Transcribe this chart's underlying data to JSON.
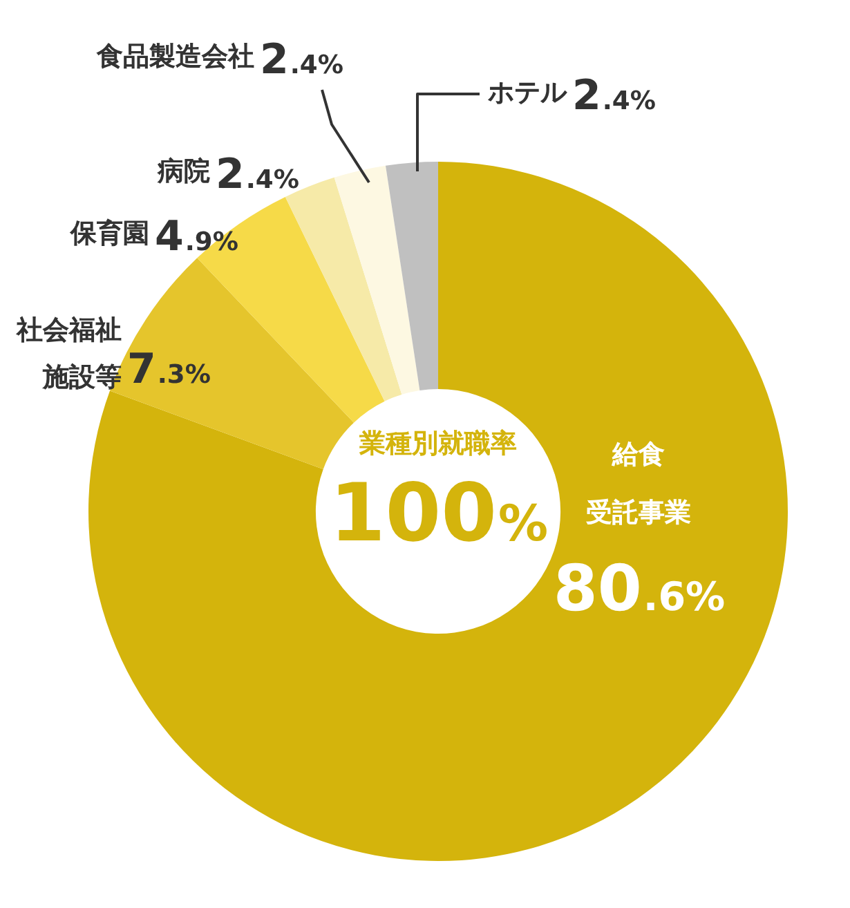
{
  "chart_data": {
    "type": "donut",
    "categories": [
      "給食受託事業",
      "社会福祉施設等",
      "保育園",
      "病院",
      "食品製造会社",
      "ホテル"
    ],
    "values": [
      80.6,
      7.3,
      4.9,
      2.4,
      2.4,
      2.4
    ],
    "value_labels": [
      "80.6%",
      "7.3%",
      "4.9%",
      "2.4%",
      "2.4%",
      "2.4%"
    ],
    "colors": [
      "#d4b40c",
      "#e5c52c",
      "#f6da48",
      "#f6eaa8",
      "#fdf8e2",
      "#c0c0c0"
    ],
    "annotations": [
      "業種別就職率",
      "100%"
    ],
    "legend": false
  }
}
